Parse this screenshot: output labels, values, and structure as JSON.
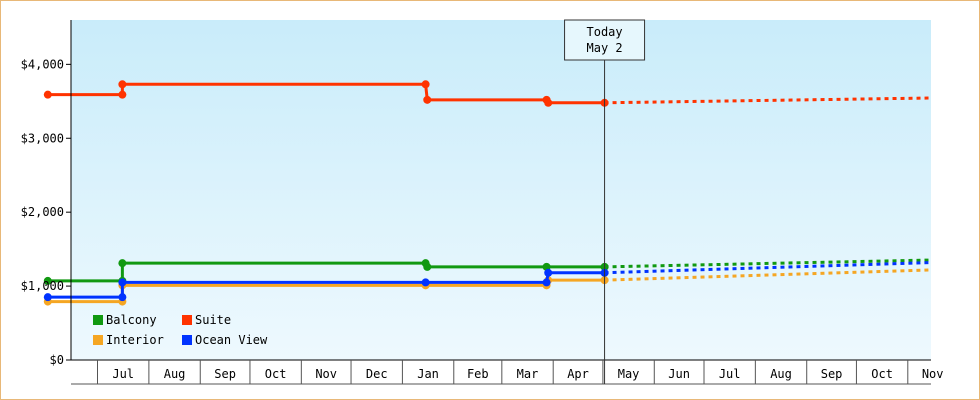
{
  "chart_data": {
    "type": "line",
    "title": "",
    "xlabel": "",
    "ylabel": "",
    "ylim": [
      0,
      4600
    ],
    "y_ticks": [
      0,
      1000,
      2000,
      3000,
      4000
    ],
    "y_tick_labels": [
      "$0",
      "$1,000",
      "$2,000",
      "$3,000",
      "$4,000"
    ],
    "x_start": "2023-06",
    "x_end": "2024-11",
    "x_tick_labels": [
      "Jul",
      "Aug",
      "Sep",
      "Oct",
      "Nov",
      "Dec",
      "Jan",
      "Feb",
      "Mar",
      "Apr",
      "May",
      "Jun",
      "Jul",
      "Aug",
      "Sep",
      "Oct",
      "Nov"
    ],
    "today_marker": {
      "line1": "Today",
      "line2": "May 2",
      "date": "2024-05-02"
    },
    "legend_position": "bottom-left",
    "series": [
      {
        "name": "Balcony",
        "color": "#119911",
        "points": [
          [
            "2023-06-01",
            1070
          ],
          [
            "2023-07-16",
            1070
          ],
          [
            "2023-07-16",
            1310
          ],
          [
            "2024-01-15",
            1310
          ],
          [
            "2024-01-16",
            1260
          ],
          [
            "2024-03-28",
            1260
          ],
          [
            "2024-05-02",
            1260
          ]
        ],
        "forecast": [
          [
            "2024-05-02",
            1260
          ],
          [
            "2024-12-01",
            1360
          ]
        ]
      },
      {
        "name": "Suite",
        "color": "#ff3300",
        "points": [
          [
            "2023-06-01",
            3590
          ],
          [
            "2023-07-16",
            3590
          ],
          [
            "2023-07-16",
            3730
          ],
          [
            "2024-01-15",
            3730
          ],
          [
            "2024-01-16",
            3520
          ],
          [
            "2024-03-28",
            3520
          ],
          [
            "2024-03-29",
            3480
          ],
          [
            "2024-05-02",
            3480
          ]
        ],
        "forecast": [
          [
            "2024-05-02",
            3480
          ],
          [
            "2024-12-01",
            3550
          ]
        ]
      },
      {
        "name": "Interior",
        "color": "#f5a623",
        "points": [
          [
            "2023-06-01",
            790
          ],
          [
            "2023-07-16",
            790
          ],
          [
            "2023-07-16",
            1010
          ],
          [
            "2024-01-15",
            1010
          ],
          [
            "2024-03-28",
            1010
          ],
          [
            "2024-03-29",
            1080
          ],
          [
            "2024-05-02",
            1080
          ]
        ],
        "forecast": [
          [
            "2024-05-02",
            1080
          ],
          [
            "2024-12-01",
            1230
          ]
        ]
      },
      {
        "name": "Ocean View",
        "color": "#0033ff",
        "points": [
          [
            "2023-06-01",
            850
          ],
          [
            "2023-07-16",
            850
          ],
          [
            "2023-07-16",
            1050
          ],
          [
            "2024-01-15",
            1050
          ],
          [
            "2024-03-28",
            1050
          ],
          [
            "2024-03-29",
            1180
          ],
          [
            "2024-05-02",
            1180
          ]
        ],
        "forecast": [
          [
            "2024-05-02",
            1180
          ],
          [
            "2024-12-01",
            1330
          ]
        ]
      }
    ]
  }
}
